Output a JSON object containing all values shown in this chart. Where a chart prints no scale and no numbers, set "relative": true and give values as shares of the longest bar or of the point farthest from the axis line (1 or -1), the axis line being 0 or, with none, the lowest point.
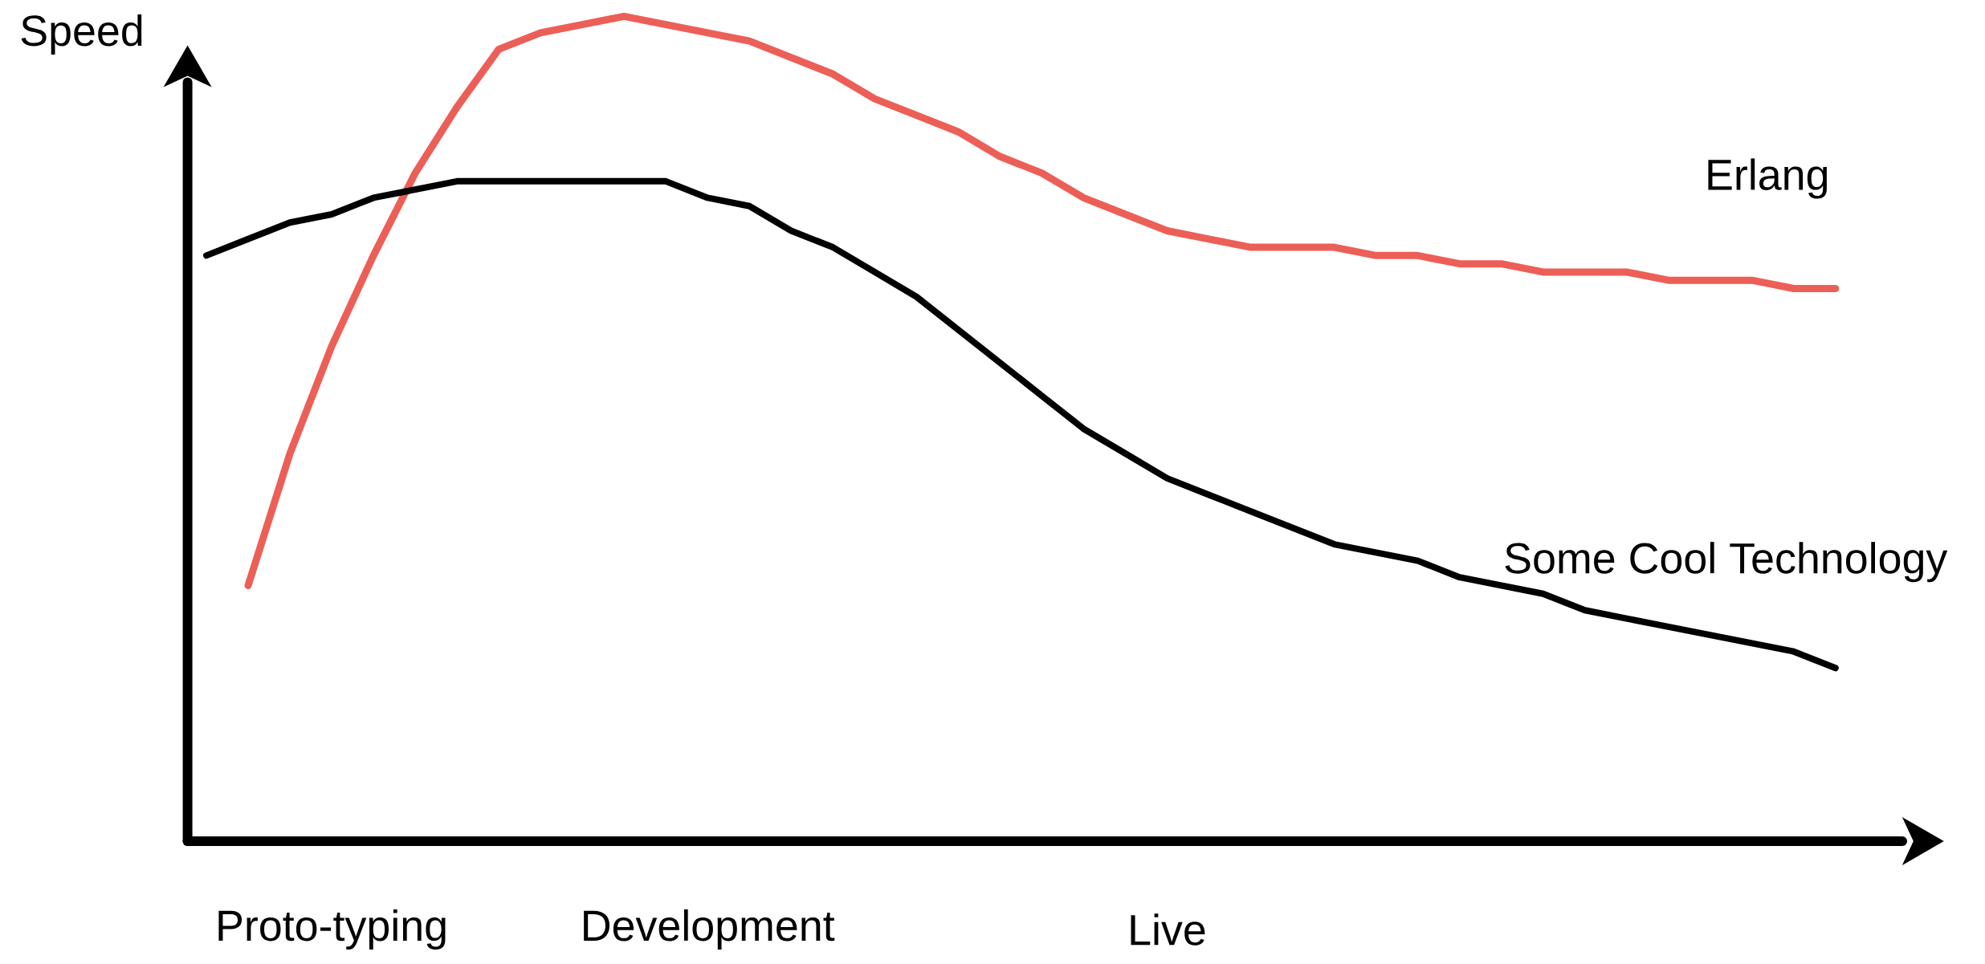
{
  "chart_data": {
    "type": "line",
    "ylabel": "Speed",
    "relative": true,
    "categories": [
      null,
      null,
      null,
      "Proto-typing",
      null,
      null,
      null,
      null,
      null,
      null,
      null,
      null,
      "Development",
      null,
      null,
      null,
      null,
      null,
      null,
      null,
      null,
      null,
      null,
      "Live",
      null,
      null,
      null,
      null,
      null,
      null,
      null,
      null,
      null,
      null,
      null,
      null,
      null,
      null,
      null,
      null
    ],
    "series": [
      {
        "name": "Erlang",
        "color": "#ec5f57",
        "values": [
          null,
          0.31,
          0.47,
          0.6,
          0.71,
          0.81,
          0.89,
          0.96,
          0.98,
          0.99,
          1,
          0.99,
          0.98,
          0.97,
          0.95,
          0.93,
          0.9,
          0.88,
          0.86,
          0.83,
          0.81,
          0.78,
          0.76,
          0.74,
          0.73,
          0.72,
          0.72,
          0.72,
          0.71,
          0.71,
          0.7,
          0.7,
          0.69,
          0.69,
          0.69,
          0.68,
          0.68,
          0.68,
          0.67,
          0.67
        ]
      },
      {
        "name": "Some Cool Technology",
        "color": "#000000",
        "values": [
          0.71,
          0.73,
          0.75,
          0.76,
          0.78,
          0.79,
          0.8,
          0.8,
          0.8,
          0.8,
          0.8,
          0.8,
          0.78,
          0.77,
          0.74,
          0.72,
          0.69,
          0.66,
          0.62,
          0.58,
          0.54,
          0.5,
          0.47,
          0.44,
          0.42,
          0.4,
          0.38,
          0.36,
          0.35,
          0.34,
          0.32,
          0.31,
          0.3,
          0.28,
          0.27,
          0.26,
          0.25,
          0.24,
          0.23,
          0.21
        ]
      }
    ]
  }
}
